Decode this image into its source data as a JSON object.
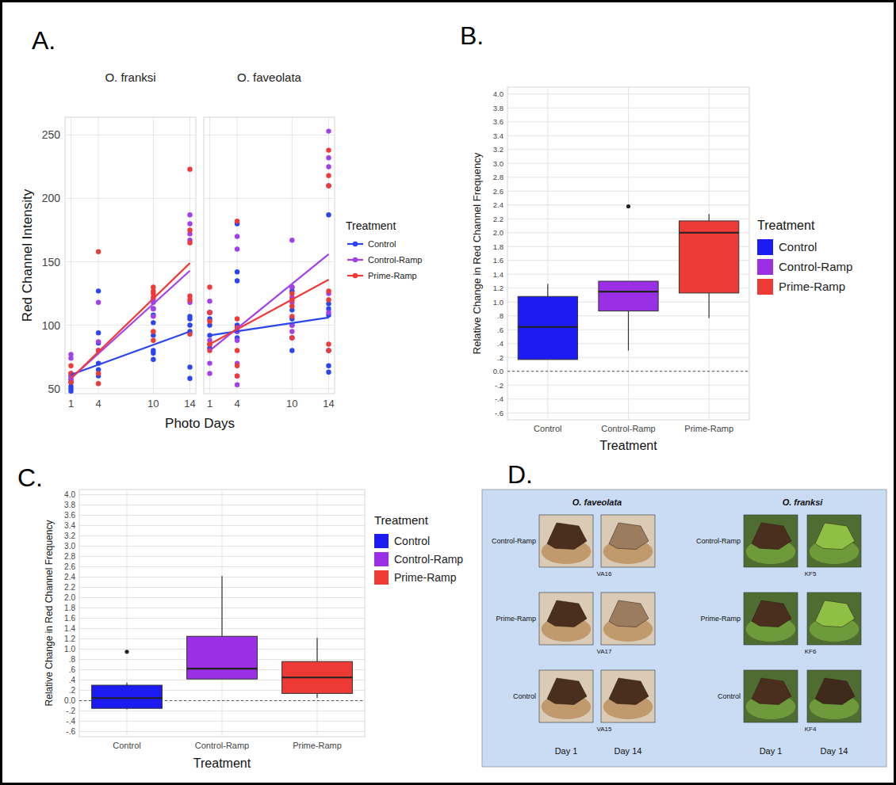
{
  "panel_labels": [
    "A.",
    "B.",
    "C.",
    "D."
  ],
  "chart_data": [
    {
      "type": "scatter",
      "facets": [
        "O. franksi",
        "O. faveolata"
      ],
      "x_label": "Photo Days",
      "y_label": "Red Channel Intensity",
      "xlim": [
        0.35,
        14.65
      ],
      "ylim": [
        46,
        264
      ],
      "xticks": [
        1,
        4,
        10,
        14
      ],
      "yticks": [
        50,
        100,
        150,
        200,
        250
      ],
      "grid": true,
      "legend": "right",
      "legend_title": "Treatment",
      "fit_x": [
        1,
        14
      ],
      "series": [
        {
          "name": "Control",
          "color": "#2b45f0",
          "x": [
            [
              1,
              1,
              1,
              1,
              1,
              1,
              4,
              4,
              4,
              4,
              4,
              4,
              10,
              10,
              10,
              10,
              10,
              10,
              10,
              14,
              14,
              14,
              14,
              14,
              14
            ],
            [
              1,
              1,
              1,
              1,
              1,
              1,
              4,
              4,
              4,
              4,
              4,
              4,
              10,
              10,
              10,
              10,
              10,
              10,
              10,
              14,
              14,
              14,
              14,
              14,
              14,
              14
            ]
          ],
          "values": [
            [
              48,
              50,
              52,
              55,
              57,
              60,
              127,
              94,
              86,
              70,
              65,
              60,
              113,
              108,
              102,
              92,
              80,
              78,
              73,
              107,
              105,
              100,
              95,
              67,
              58
            ],
            [
              110,
              105,
              100,
              92,
              85,
              82,
              180,
              142,
              135,
              100,
              95,
              90,
              130,
              127,
              112,
              105,
              100,
              90,
              80,
              187,
              117,
              113,
              108,
              80,
              68,
              63
            ]
          ],
          "fit": [
            [
              61,
              95
            ],
            [
              92,
              106
            ]
          ]
        },
        {
          "name": "Control-Ramp",
          "color": "#a340ee",
          "x": [
            [
              1,
              1,
              1,
              1,
              4,
              4,
              4,
              10,
              10,
              10,
              10,
              14,
              14,
              14,
              14,
              14
            ],
            [
              1,
              1,
              1,
              1,
              1,
              4,
              4,
              4,
              4,
              4,
              4,
              4,
              10,
              10,
              10,
              10,
              10,
              10,
              14,
              14,
              14,
              14,
              14,
              14
            ]
          ],
          "values": [
            [
              77,
              74,
              62,
              58,
              118,
              87,
              80,
              120,
              118,
              113,
              107,
              187,
              180,
              172,
              167,
              118
            ],
            [
              119,
              110,
              88,
              70,
              62,
              170,
              160,
              95,
              88,
              70,
              60,
              53,
              167,
              130,
              122,
              118,
              100,
              95,
              253,
              232,
              225,
              210,
              125,
              110
            ]
          ],
          "fit": [
            [
              58,
              143
            ],
            [
              80,
              156
            ]
          ]
        },
        {
          "name": "Prime-Ramp",
          "color": "#ef3a3a",
          "x": [
            [
              1,
              1,
              1,
              4,
              4,
              4,
              4,
              10,
              10,
              10,
              10,
              10,
              10,
              14,
              14,
              14,
              14,
              14,
              14
            ],
            [
              1,
              1,
              1,
              1,
              1,
              4,
              4,
              4,
              4,
              4,
              4,
              10,
              10,
              10,
              10,
              10,
              14,
              14,
              14,
              14,
              14,
              14,
              14
            ]
          ],
          "values": [
            [
              68,
              62,
              55,
              158,
              80,
              62,
              54,
              130,
              127,
              125,
              122,
              95,
              88,
              223,
              175,
              165,
              123,
              120,
              93
            ],
            [
              130,
              110,
              103,
              85,
              80,
              182,
              105,
              98,
              80,
              68,
              60,
              125,
              120,
              115,
              107,
              90,
              238,
              218,
              210,
              127,
              120,
              85,
              80
            ]
          ],
          "fit": [
            [
              58,
              149
            ],
            [
              85,
              136
            ]
          ]
        }
      ]
    },
    {
      "type": "box",
      "x_label": "Treatment",
      "y_label": "Relative Change in Red Channel Frequency",
      "categories": [
        "Control",
        "Control-Ramp",
        "Prime-Ramp"
      ],
      "colors": [
        "#1c1cf2",
        "#9b2fe6",
        "#ee3a35"
      ],
      "ylim": [
        -0.7,
        4.1
      ],
      "yticks": [
        {
          "value": -0.6,
          "label": "-.6"
        },
        {
          "value": -0.4,
          "label": "-.4"
        },
        {
          "value": -0.2,
          "label": "-.2"
        },
        {
          "value": 0,
          "label": "0.0"
        },
        {
          "value": 0.2,
          "label": ".2"
        },
        {
          "value": 0.4,
          "label": ".4"
        },
        {
          "value": 0.6,
          "label": ".6"
        },
        {
          "value": 0.8,
          "label": ".8"
        },
        {
          "value": 1,
          "label": "1.0"
        },
        1.2,
        1.4,
        1.6,
        1.8,
        {
          "value": 2,
          "label": "2.0"
        },
        2.2,
        2.4,
        2.6,
        2.8,
        {
          "value": 3,
          "label": "3.0"
        },
        3.2,
        3.4,
        3.6,
        3.8,
        {
          "value": 4,
          "label": "4.0"
        }
      ],
      "grid": true,
      "legend": "right",
      "legend_title": "Treatment",
      "reference_line": 0,
      "boxes": [
        {
          "min": 0.17,
          "q1": 0.17,
          "median": 0.64,
          "q3": 1.08,
          "max": 1.26
        },
        {
          "min": 0.3,
          "q1": 0.87,
          "median": 1.15,
          "q3": 1.3,
          "max": 1.3,
          "outliers": [
            2.38
          ]
        },
        {
          "min": 0.77,
          "q1": 1.13,
          "median": 2.0,
          "q3": 2.17,
          "max": 2.27
        }
      ]
    },
    {
      "type": "box",
      "x_label": "Treatment",
      "y_label": "Relative Change in Red Channel Frequency",
      "categories": [
        "Control",
        "Control-Ramp",
        "Prime-Ramp"
      ],
      "colors": [
        "#1c1cf2",
        "#9b2fe6",
        "#ee3a35"
      ],
      "ylim": [
        -0.7,
        4.1
      ],
      "yticks": [
        {
          "value": -0.6,
          "label": "-.6"
        },
        {
          "value": -0.4,
          "label": "-.4"
        },
        {
          "value": -0.2,
          "label": "-.2"
        },
        {
          "value": 0,
          "label": "0.0"
        },
        {
          "value": 0.2,
          "label": ".2"
        },
        {
          "value": 0.4,
          "label": ".4"
        },
        {
          "value": 0.6,
          "label": ".6"
        },
        {
          "value": 0.8,
          "label": ".8"
        },
        {
          "value": 1,
          "label": "1.0"
        },
        1.2,
        1.4,
        1.6,
        1.8,
        {
          "value": 2,
          "label": "2.0"
        },
        2.2,
        2.4,
        2.6,
        2.8,
        {
          "value": 3,
          "label": "3.0"
        },
        3.2,
        3.4,
        3.6,
        3.8,
        {
          "value": 4,
          "label": "4.0"
        }
      ],
      "grid": true,
      "legend": "right",
      "legend_title": "Treatment",
      "reference_line": 0,
      "boxes": [
        {
          "min": -0.17,
          "q1": -0.15,
          "median": 0.05,
          "q3": 0.3,
          "max": 0.35,
          "outliers": [
            0.95
          ]
        },
        {
          "min": 0.42,
          "q1": 0.42,
          "median": 0.62,
          "q3": 1.25,
          "max": 2.42
        },
        {
          "min": 0.05,
          "q1": 0.14,
          "median": 0.45,
          "q3": 0.76,
          "max": 1.22
        }
      ]
    }
  ],
  "photo_panel": {
    "rows": [
      "Control-Ramp",
      "Prime-Ramp",
      "Control"
    ],
    "groups": [
      {
        "species": "O. faveolata",
        "samples": [
          "VA16",
          "VA17",
          "VA15"
        ],
        "days": [
          "Day 1",
          "Day 14"
        ]
      },
      {
        "species": "O. franksi",
        "samples": [
          "KF5",
          "KF6",
          "KF4"
        ],
        "days": [
          "Day 1",
          "Day 14"
        ]
      }
    ]
  }
}
